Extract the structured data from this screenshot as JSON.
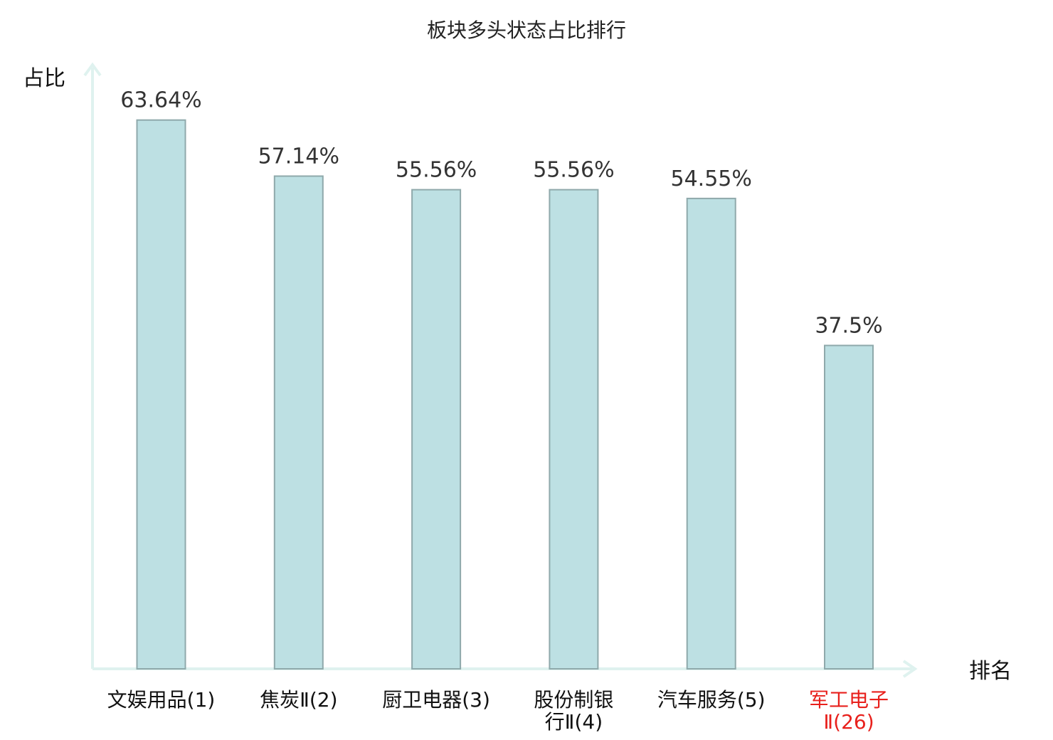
{
  "chart_data": {
    "type": "bar",
    "title": "板块多头状态占比排行",
    "ylabel": "占比",
    "xlabel": "排名",
    "categories": [
      [
        "文娱用品(1)"
      ],
      [
        "焦炭Ⅱ(2)"
      ],
      [
        "厨卫电器(3)"
      ],
      [
        "股份制银",
        "行Ⅱ(4)"
      ],
      [
        "汽车服务(5)"
      ],
      [
        "军工电子",
        "Ⅱ(26)"
      ]
    ],
    "values": [
      63.64,
      57.14,
      55.56,
      55.56,
      54.55,
      37.5
    ],
    "value_labels": [
      "63.64%",
      "57.14%",
      "55.56%",
      "55.56%",
      "54.55%",
      "37.5%"
    ],
    "highlight_index": 5,
    "ylim": [
      0,
      70
    ],
    "grid": false,
    "legend": "none",
    "colors": {
      "bar_fill": "#bde0e3",
      "bar_stroke": "#8fa9ab",
      "axis": "#dff2ef",
      "tick_text": "#111111",
      "highlight_text": "#e8201c",
      "value_text": "#333333"
    }
  }
}
